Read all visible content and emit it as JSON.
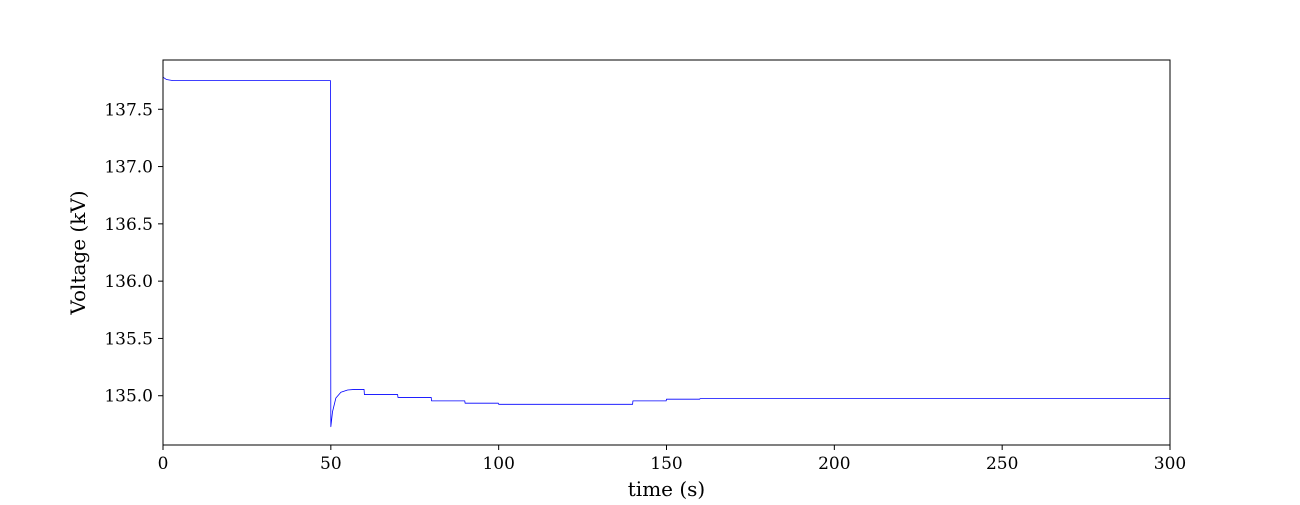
{
  "chart_data": {
    "type": "line",
    "title": "",
    "xlabel": "time (s)",
    "ylabel": "Voltage (kV)",
    "xlim": [
      0,
      300
    ],
    "ylim": [
      134.57,
      137.93
    ],
    "xticks": [
      0,
      50,
      100,
      150,
      200,
      250,
      300
    ],
    "yticks": [
      135.0,
      135.5,
      136.0,
      136.5,
      137.0,
      137.5
    ],
    "xtick_labels": [
      "0",
      "50",
      "100",
      "150",
      "200",
      "250",
      "300"
    ],
    "ytick_labels": [
      "135.0",
      "135.5",
      "136.0",
      "136.5",
      "137.0",
      "137.5"
    ],
    "grid": false,
    "legend": "none",
    "series": [
      {
        "color": "#0000ff",
        "x": [
          0,
          1,
          3,
          6,
          10,
          49.9,
          50,
          50.5,
          51.5,
          53,
          55,
          57,
          59.9,
          60,
          69.9,
          70,
          79.9,
          80,
          89.9,
          90,
          99.9,
          100,
          139.9,
          140,
          149.9,
          150,
          159.9,
          160,
          300
        ],
        "y": [
          137.78,
          137.76,
          137.75,
          137.75,
          137.75,
          137.75,
          134.73,
          134.86,
          134.98,
          135.03,
          135.05,
          135.055,
          135.055,
          135.01,
          135.01,
          134.985,
          134.985,
          134.955,
          134.955,
          134.935,
          134.935,
          134.925,
          134.925,
          134.955,
          134.955,
          134.97,
          134.97,
          134.975,
          134.975
        ]
      }
    ]
  }
}
